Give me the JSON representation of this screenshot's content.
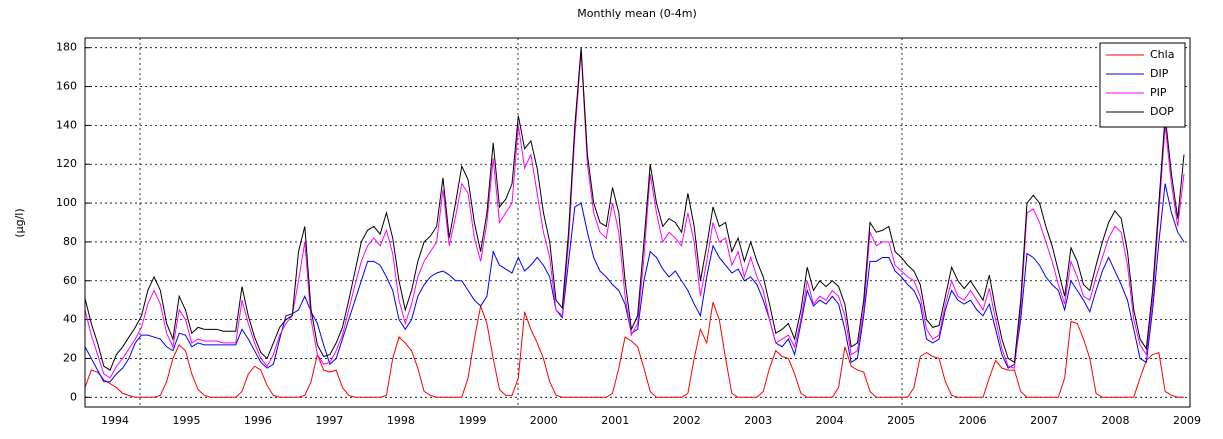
{
  "chart_data": {
    "type": "line",
    "title": "Monthly mean (0-4m)",
    "y_label": "(µg/l)",
    "xtick_labels": [
      "1994",
      "1995",
      "1996",
      "1997",
      "1998",
      "1999",
      "2000",
      "2001",
      "2002",
      "2003",
      "2004",
      "2005",
      "2006",
      "2007",
      "2008",
      "2009"
    ],
    "ylim": [
      -5,
      185
    ],
    "yticks": [
      0,
      20,
      40,
      60,
      80,
      100,
      120,
      140,
      160,
      180
    ],
    "grid": true,
    "legend": "top-right",
    "series": [
      {
        "name": "Chla",
        "color": "#ff0000",
        "values": [
          5,
          14,
          13,
          9,
          7,
          5,
          2,
          1,
          0,
          0,
          0,
          0,
          1,
          8,
          20,
          27,
          24,
          12,
          4,
          1,
          0,
          0,
          0,
          0,
          0,
          3,
          12,
          16,
          14,
          6,
          1,
          0,
          0,
          0,
          0,
          1,
          8,
          22,
          14,
          13,
          14,
          5,
          1,
          0,
          0,
          0,
          0,
          0,
          1,
          20,
          31,
          28,
          24,
          15,
          3,
          1,
          0,
          0,
          0,
          0,
          0,
          10,
          30,
          47,
          38,
          20,
          4,
          1,
          1,
          10,
          44,
          35,
          28,
          20,
          8,
          1,
          0,
          0,
          0,
          0,
          0,
          0,
          0,
          0,
          2,
          15,
          31,
          29,
          26,
          15,
          3,
          0,
          0,
          0,
          0,
          0,
          2,
          20,
          35,
          28,
          49,
          40,
          20,
          2,
          0,
          0,
          0,
          0,
          3,
          15,
          24,
          21,
          20,
          12,
          2,
          0,
          0,
          0,
          0,
          0,
          5,
          26,
          16,
          14,
          13,
          3,
          0,
          0,
          0,
          0,
          0,
          0,
          5,
          21,
          23,
          21,
          20,
          8,
          1,
          0,
          0,
          0,
          0,
          0,
          10,
          19,
          15,
          14,
          14,
          3,
          0,
          0,
          0,
          0,
          0,
          0,
          10,
          39,
          38,
          30,
          20,
          2,
          0,
          0,
          0,
          0,
          0,
          0,
          10,
          19,
          22,
          23,
          3,
          1,
          0,
          0
        ]
      },
      {
        "name": "DIP",
        "color": "#0000ff",
        "values": [
          26,
          20,
          14,
          8,
          8,
          12,
          15,
          20,
          28,
          32,
          32,
          31,
          30,
          26,
          24,
          33,
          32,
          26,
          28,
          27,
          27,
          27,
          27,
          27,
          27,
          35,
          30,
          24,
          18,
          15,
          17,
          30,
          42,
          43,
          45,
          52,
          44,
          38,
          27,
          17,
          20,
          30,
          40,
          50,
          60,
          70,
          70,
          68,
          62,
          55,
          40,
          35,
          40,
          52,
          58,
          62,
          64,
          65,
          63,
          60,
          60,
          55,
          50,
          47,
          52,
          75,
          68,
          66,
          64,
          72,
          65,
          68,
          72,
          68,
          62,
          45,
          41,
          70,
          98,
          100,
          85,
          72,
          65,
          62,
          58,
          55,
          48,
          33,
          35,
          60,
          75,
          72,
          66,
          62,
          65,
          60,
          55,
          48,
          42,
          62,
          78,
          72,
          68,
          64,
          66,
          60,
          62,
          58,
          50,
          40,
          28,
          26,
          30,
          22,
          38,
          55,
          47,
          50,
          48,
          52,
          48,
          35,
          18,
          20,
          42,
          70,
          70,
          72,
          72,
          65,
          62,
          58,
          55,
          48,
          30,
          28,
          30,
          45,
          55,
          50,
          48,
          50,
          45,
          42,
          48,
          35,
          22,
          15,
          17,
          40,
          74,
          72,
          68,
          62,
          58,
          55,
          45,
          60,
          55,
          50,
          44,
          55,
          65,
          72,
          65,
          58,
          50,
          35,
          20,
          18,
          45,
          80,
          110,
          95,
          85,
          80
        ]
      },
      {
        "name": "PIP",
        "color": "#ff00ff",
        "values": [
          45,
          32,
          22,
          12,
          10,
          16,
          20,
          25,
          30,
          36,
          48,
          55,
          48,
          33,
          26,
          45,
          40,
          28,
          30,
          29,
          29,
          29,
          28,
          28,
          28,
          50,
          38,
          28,
          20,
          16,
          22,
          32,
          38,
          42,
          60,
          80,
          40,
          22,
          17,
          18,
          24,
          32,
          45,
          58,
          70,
          78,
          82,
          78,
          86,
          74,
          50,
          38,
          48,
          62,
          70,
          75,
          80,
          107,
          78,
          93,
          110,
          105,
          82,
          70,
          90,
          123,
          90,
          95,
          100,
          140,
          118,
          125,
          105,
          85,
          72,
          45,
          42,
          80,
          135,
          178,
          120,
          95,
          85,
          82,
          100,
          85,
          52,
          32,
          38,
          72,
          115,
          95,
          80,
          85,
          82,
          78,
          95,
          80,
          52,
          70,
          90,
          80,
          82,
          68,
          75,
          62,
          72,
          62,
          55,
          40,
          28,
          30,
          32,
          26,
          40,
          60,
          48,
          52,
          50,
          55,
          52,
          42,
          22,
          24,
          45,
          85,
          78,
          80,
          80,
          68,
          65,
          62,
          60,
          52,
          35,
          30,
          32,
          48,
          60,
          52,
          50,
          55,
          50,
          45,
          56,
          40,
          25,
          16,
          15,
          45,
          95,
          97,
          90,
          80,
          70,
          58,
          48,
          70,
          62,
          52,
          50,
          62,
          72,
          82,
          88,
          85,
          68,
          40,
          27,
          22,
          50,
          95,
          140,
          110,
          88,
          115
        ]
      },
      {
        "name": "DOP",
        "color": "#000000",
        "values": [
          51,
          38,
          28,
          16,
          14,
          22,
          26,
          31,
          36,
          42,
          55,
          62,
          55,
          38,
          30,
          52,
          45,
          33,
          36,
          35,
          35,
          35,
          34,
          34,
          34,
          57,
          42,
          31,
          23,
          20,
          28,
          36,
          40,
          42,
          75,
          88,
          45,
          27,
          21,
          22,
          28,
          36,
          50,
          65,
          80,
          86,
          88,
          84,
          95,
          82,
          60,
          45,
          55,
          70,
          80,
          83,
          88,
          113,
          82,
          100,
          119,
          112,
          90,
          75,
          95,
          131,
          98,
          102,
          110,
          145,
          128,
          132,
          118,
          95,
          80,
          50,
          46,
          85,
          140,
          180,
          125,
          100,
          90,
          88,
          108,
          95,
          60,
          35,
          42,
          80,
          120,
          100,
          88,
          92,
          90,
          85,
          105,
          88,
          60,
          78,
          98,
          88,
          90,
          75,
          82,
          70,
          80,
          70,
          62,
          48,
          33,
          35,
          38,
          30,
          45,
          67,
          55,
          60,
          57,
          60,
          57,
          48,
          26,
          28,
          50,
          90,
          85,
          86,
          88,
          75,
          72,
          68,
          65,
          58,
          40,
          36,
          37,
          52,
          67,
          60,
          56,
          60,
          55,
          50,
          63,
          45,
          30,
          20,
          18,
          50,
          100,
          104,
          100,
          88,
          78,
          65,
          52,
          77,
          70,
          58,
          55,
          68,
          80,
          90,
          96,
          92,
          75,
          45,
          30,
          25,
          55,
          100,
          145,
          115,
          92,
          125
        ]
      }
    ]
  }
}
